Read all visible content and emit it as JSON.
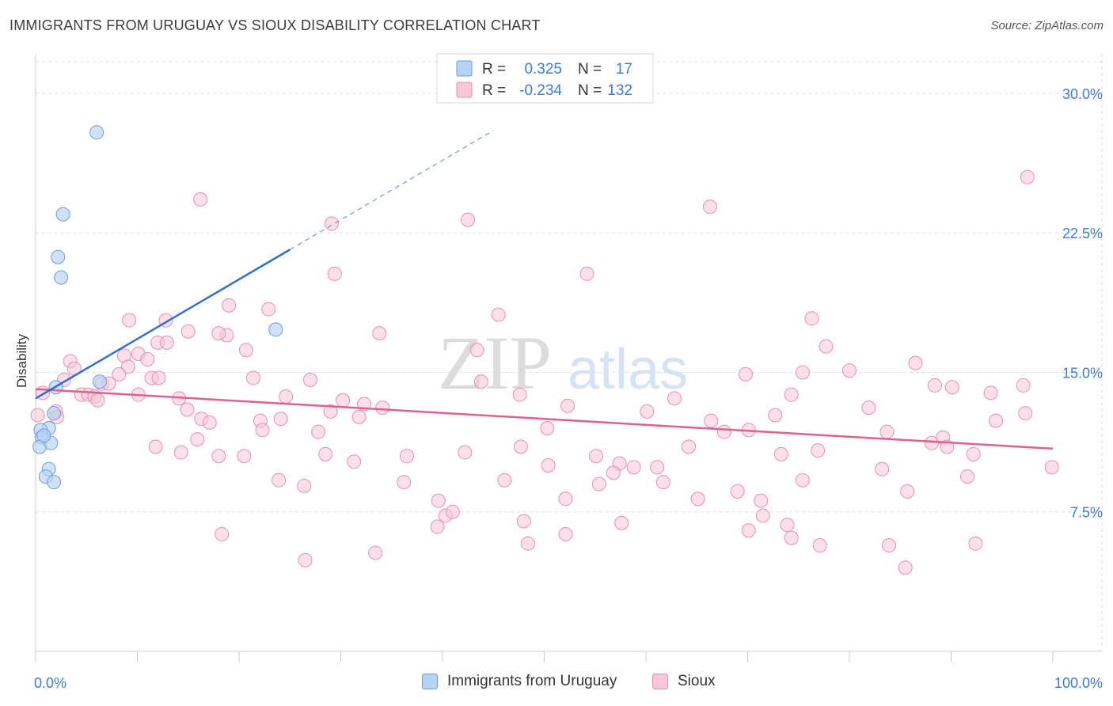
{
  "header": {
    "title": "IMMIGRANTS FROM URUGUAY VS SIOUX DISABILITY CORRELATION CHART",
    "source": "Source: ZipAtlas.com"
  },
  "watermark": {
    "zip": "ZIP",
    "atlas": "atlas"
  },
  "stats_legend": {
    "rows": [
      {
        "r_label": "R =",
        "r_value": "0.325",
        "n_label": "N =",
        "n_value": "17"
      },
      {
        "r_label": "R =",
        "r_value": "-0.234",
        "n_label": "N =",
        "n_value": "132"
      }
    ]
  },
  "colors": {
    "uruguay_fill": "#b8d2f5",
    "uruguay_stroke": "#6b9ee0",
    "uruguay_line": "#2f6fd0",
    "sioux_fill": "#f8c6d6",
    "sioux_stroke": "#e890b0",
    "sioux_line": "#e06090",
    "value_text": "#3d7ad8"
  },
  "chart_data": {
    "type": "scatter",
    "ylabel": "Disability",
    "xlim": [
      0,
      100
    ],
    "ylim": [
      0,
      31.7
    ],
    "x_tick_labels": [
      "0.0%",
      "100.0%"
    ],
    "y_ticks": [
      {
        "value": 7.5,
        "label": "7.5%"
      },
      {
        "value": 15.0,
        "label": "15.0%"
      },
      {
        "value": 22.5,
        "label": "22.5%"
      },
      {
        "value": 30.0,
        "label": "30.0%"
      }
    ],
    "grid": true,
    "legend_placement": "bottom",
    "series": [
      {
        "name": "Immigrants from Uruguay",
        "color": "#6b9ee0",
        "trend": {
          "x": [
            0.0,
            25.0
          ],
          "y": [
            13.6,
            21.6
          ],
          "extend_to_x": 45.0
        },
        "points": [
          [
            6.0,
            27.9
          ],
          [
            2.7,
            23.5
          ],
          [
            2.2,
            21.2
          ],
          [
            2.5,
            20.1
          ],
          [
            23.6,
            17.3
          ],
          [
            1.8,
            12.8
          ],
          [
            6.3,
            14.5
          ],
          [
            2.0,
            14.2
          ],
          [
            1.3,
            12.0
          ],
          [
            0.5,
            11.9
          ],
          [
            0.6,
            11.5
          ],
          [
            0.4,
            11.0
          ],
          [
            1.5,
            11.2
          ],
          [
            1.3,
            9.8
          ],
          [
            1.0,
            9.4
          ],
          [
            1.8,
            9.1
          ],
          [
            0.8,
            11.6
          ]
        ]
      },
      {
        "name": "Sioux",
        "color": "#e890b0",
        "trend": {
          "x": [
            0.0,
            100.0
          ],
          "y": [
            14.1,
            10.9
          ]
        },
        "points": [
          [
            97.5,
            25.5
          ],
          [
            16.2,
            24.3
          ],
          [
            66.3,
            23.9
          ],
          [
            42.5,
            23.2
          ],
          [
            29.1,
            23.0
          ],
          [
            29.4,
            20.3
          ],
          [
            54.2,
            20.3
          ],
          [
            19.0,
            18.6
          ],
          [
            22.9,
            18.4
          ],
          [
            45.5,
            18.1
          ],
          [
            76.3,
            17.9
          ],
          [
            9.2,
            17.8
          ],
          [
            12.8,
            17.8
          ],
          [
            15.0,
            17.2
          ],
          [
            33.8,
            17.1
          ],
          [
            18.8,
            17.0
          ],
          [
            18.0,
            17.1
          ],
          [
            12.0,
            16.6
          ],
          [
            12.9,
            16.6
          ],
          [
            77.7,
            16.4
          ],
          [
            20.7,
            16.2
          ],
          [
            43.4,
            16.2
          ],
          [
            8.7,
            15.9
          ],
          [
            10.1,
            16.0
          ],
          [
            11.0,
            15.7
          ],
          [
            3.4,
            15.6
          ],
          [
            86.5,
            15.5
          ],
          [
            3.8,
            15.2
          ],
          [
            9.1,
            15.3
          ],
          [
            75.4,
            15.0
          ],
          [
            80.0,
            15.1
          ],
          [
            8.2,
            14.9
          ],
          [
            11.4,
            14.7
          ],
          [
            12.1,
            14.7
          ],
          [
            21.4,
            14.7
          ],
          [
            27.0,
            14.6
          ],
          [
            2.8,
            14.6
          ],
          [
            6.5,
            14.4
          ],
          [
            7.2,
            14.4
          ],
          [
            43.8,
            14.5
          ],
          [
            69.8,
            14.9
          ],
          [
            88.4,
            14.3
          ],
          [
            90.1,
            14.2
          ],
          [
            97.1,
            14.3
          ],
          [
            0.7,
            13.9
          ],
          [
            4.5,
            13.8
          ],
          [
            5.2,
            13.8
          ],
          [
            5.8,
            13.7
          ],
          [
            6.1,
            13.5
          ],
          [
            10.1,
            13.8
          ],
          [
            14.1,
            13.6
          ],
          [
            24.6,
            13.7
          ],
          [
            30.2,
            13.5
          ],
          [
            47.6,
            13.8
          ],
          [
            62.8,
            13.6
          ],
          [
            74.3,
            13.8
          ],
          [
            93.9,
            13.9
          ],
          [
            32.3,
            13.3
          ],
          [
            34.1,
            13.1
          ],
          [
            14.9,
            13.0
          ],
          [
            29.0,
            12.9
          ],
          [
            52.3,
            13.2
          ],
          [
            2.0,
            12.9
          ],
          [
            2.1,
            12.6
          ],
          [
            31.8,
            12.6
          ],
          [
            60.1,
            12.9
          ],
          [
            72.7,
            12.7
          ],
          [
            81.9,
            13.1
          ],
          [
            94.4,
            12.4
          ],
          [
            97.3,
            12.8
          ],
          [
            16.3,
            12.5
          ],
          [
            17.1,
            12.3
          ],
          [
            22.1,
            12.4
          ],
          [
            24.1,
            12.5
          ],
          [
            66.4,
            12.4
          ],
          [
            22.3,
            11.9
          ],
          [
            27.8,
            11.8
          ],
          [
            50.3,
            12.0
          ],
          [
            67.7,
            11.8
          ],
          [
            70.1,
            11.9
          ],
          [
            83.7,
            11.8
          ],
          [
            15.9,
            11.4
          ],
          [
            88.1,
            11.2
          ],
          [
            89.2,
            11.5
          ],
          [
            89.6,
            11.0
          ],
          [
            11.8,
            11.0
          ],
          [
            47.7,
            11.0
          ],
          [
            64.2,
            11.0
          ],
          [
            14.3,
            10.7
          ],
          [
            18.0,
            10.5
          ],
          [
            20.5,
            10.5
          ],
          [
            28.5,
            10.6
          ],
          [
            36.5,
            10.5
          ],
          [
            42.2,
            10.7
          ],
          [
            55.1,
            10.5
          ],
          [
            76.9,
            10.8
          ],
          [
            92.2,
            10.6
          ],
          [
            31.3,
            10.2
          ],
          [
            57.4,
            10.1
          ],
          [
            50.4,
            10.0
          ],
          [
            58.8,
            9.9
          ],
          [
            61.1,
            9.9
          ],
          [
            73.3,
            10.6
          ],
          [
            56.8,
            9.6
          ],
          [
            75.4,
            9.2
          ],
          [
            83.2,
            9.8
          ],
          [
            99.9,
            9.9
          ],
          [
            23.9,
            9.2
          ],
          [
            36.2,
            9.1
          ],
          [
            46.1,
            9.2
          ],
          [
            55.4,
            9.0
          ],
          [
            61.7,
            9.1
          ],
          [
            69.0,
            8.6
          ],
          [
            85.7,
            8.6
          ],
          [
            91.6,
            9.4
          ],
          [
            26.4,
            8.9
          ],
          [
            39.6,
            8.1
          ],
          [
            52.1,
            8.2
          ],
          [
            65.1,
            8.2
          ],
          [
            71.3,
            8.1
          ],
          [
            40.3,
            7.3
          ],
          [
            41.0,
            7.5
          ],
          [
            57.6,
            6.9
          ],
          [
            71.5,
            7.3
          ],
          [
            73.9,
            6.8
          ],
          [
            18.3,
            6.3
          ],
          [
            39.5,
            6.7
          ],
          [
            48.0,
            7.0
          ],
          [
            70.1,
            6.5
          ],
          [
            74.3,
            6.1
          ],
          [
            52.1,
            6.3
          ],
          [
            48.4,
            5.8
          ],
          [
            77.1,
            5.7
          ],
          [
            83.9,
            5.7
          ],
          [
            92.4,
            5.8
          ],
          [
            33.4,
            5.3
          ],
          [
            85.5,
            4.5
          ],
          [
            26.5,
            4.9
          ],
          [
            0.2,
            12.7
          ]
        ]
      }
    ]
  },
  "legend_bottom": {
    "items": [
      {
        "label": "Immigrants from Uruguay"
      },
      {
        "label": "Sioux"
      }
    ]
  }
}
